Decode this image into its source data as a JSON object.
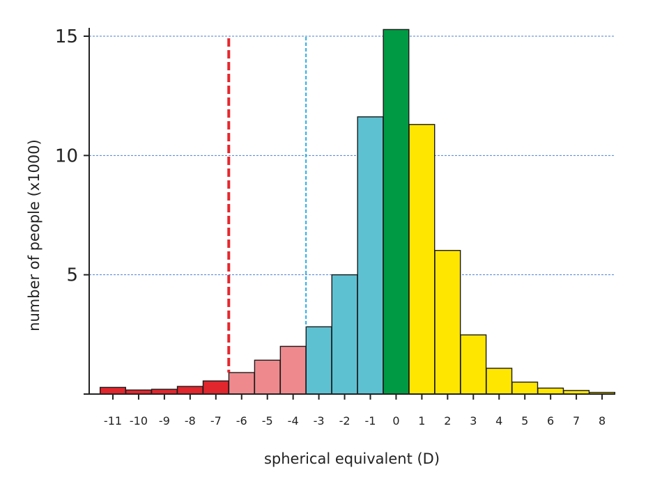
{
  "chart_data": {
    "type": "bar",
    "title": "",
    "xlabel": "spherical equivalent (D)",
    "ylabel": "number of people (x1000)",
    "ylim": [
      0,
      16
    ],
    "yticks": [
      {
        "value": 5,
        "label": "5"
      },
      {
        "value": 10,
        "label": "10"
      },
      {
        "value": 15,
        "label": "15"
      }
    ],
    "grid": "horizontal dashed at 5, 10, 15",
    "categories": [
      "-11",
      "-10",
      "-9",
      "-8",
      "-7",
      "-6",
      "-5",
      "-4",
      "-3",
      "-2",
      "-1",
      "0",
      "1",
      "2",
      "3",
      "4",
      "5",
      "6",
      "7",
      "8"
    ],
    "values": [
      0.28,
      0.17,
      0.2,
      0.32,
      0.55,
      0.9,
      1.42,
      2.0,
      2.82,
      5.0,
      11.62,
      15.28,
      11.3,
      6.02,
      2.48,
      1.08,
      0.5,
      0.25,
      0.15,
      0.07
    ],
    "bar_colors": [
      "#e1262d",
      "#e1262d",
      "#e1262d",
      "#e1262d",
      "#e1262d",
      "#ee8a8e",
      "#ee8a8e",
      "#ee8a8e",
      "#5ec1d2",
      "#5ec1d2",
      "#5ec1d2",
      "#009a44",
      "#ffe600",
      "#ffe600",
      "#ffe600",
      "#ffe600",
      "#ffe600",
      "#ffe600",
      "#ffe600",
      "#ffe600"
    ],
    "reference_lines": [
      {
        "x": -6.5,
        "color": "#e8262d",
        "style": "dashed"
      },
      {
        "x": -3.5,
        "color": "#29aee6",
        "style": "dashed"
      }
    ],
    "colors": {
      "grid": "#4a7fd6",
      "axis": "#222222",
      "bar_edge": "#1a1a1a"
    }
  }
}
